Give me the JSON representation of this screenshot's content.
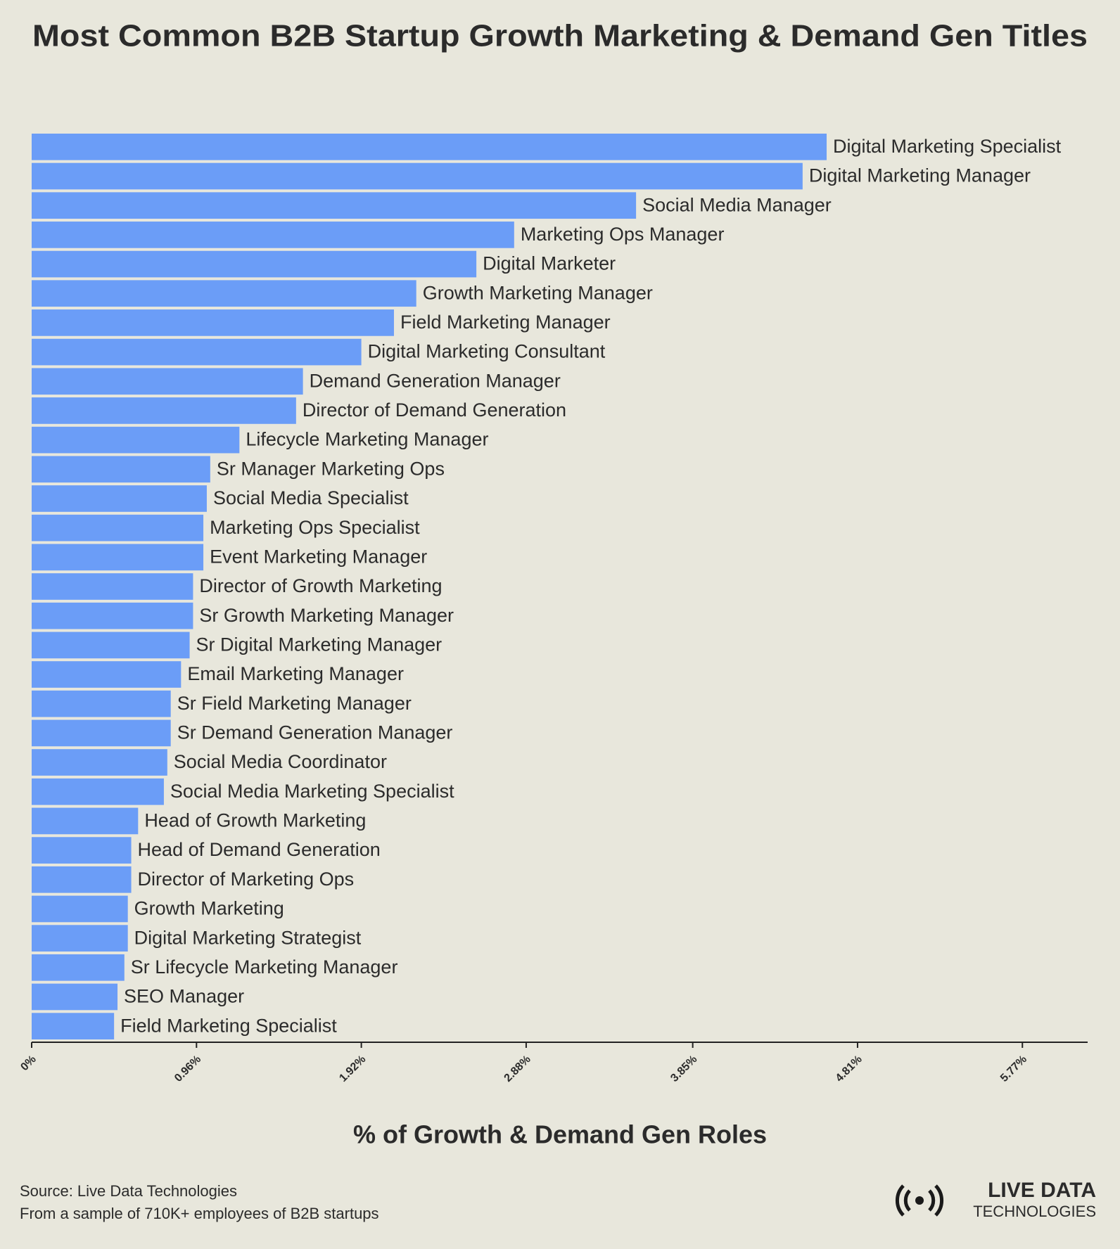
{
  "chart_data": {
    "type": "hbar",
    "title": "Most Common B2B Startup Growth Marketing & Demand Gen Titles",
    "x_label": "% of Growth & Demand Gen Roles",
    "source": "Source: Live Data Technologies",
    "note": "From a sample of 710K+ employees of B2B startups",
    "logo": {
      "line1": "LIVE DATA",
      "line2": "TECHNOLOGIES"
    },
    "color": "#6b9df7",
    "categories": [
      "Digital Marketing Specialist",
      "Digital Marketing Manager",
      "Social Media Manager",
      "Marketing Ops Manager",
      "Digital Marketer",
      "Growth Marketing Manager",
      "Field Marketing Manager",
      "Digital Marketing Consultant",
      "Demand Generation Manager",
      "Director of Demand Generation",
      "Lifecycle Marketing Manager",
      "Sr Manager Marketing Ops",
      "Social Media Specialist",
      "Marketing Ops Specialist",
      "Event Marketing Manager",
      "Director of Growth Marketing",
      "Sr Growth Marketing Manager",
      "Sr Digital Marketing Manager",
      "Email Marketing Manager",
      "Sr Field Marketing Manager",
      "Sr Demand Generation Manager",
      "Social Media Coordinator",
      "Social Media Marketing Specialist",
      "Head of Growth Marketing",
      "Head of Demand Generation",
      "Director of Marketing Ops",
      "Growth Marketing",
      "Digital Marketing Strategist",
      "Sr Lifecycle Marketing Manager",
      "SEO Manager",
      "Field Marketing Specialist"
    ],
    "values": [
      4.63,
      4.49,
      3.52,
      2.81,
      2.59,
      2.24,
      2.11,
      1.92,
      1.58,
      1.54,
      1.21,
      1.04,
      1.02,
      1.0,
      1.0,
      0.94,
      0.94,
      0.92,
      0.87,
      0.81,
      0.81,
      0.79,
      0.77,
      0.62,
      0.58,
      0.58,
      0.56,
      0.56,
      0.54,
      0.5,
      0.48
    ],
    "xlim": [
      0,
      6.15
    ],
    "xticks": [
      {
        "value": 0,
        "label": "0%"
      },
      {
        "value": 0.96,
        "label": "0.96%"
      },
      {
        "value": 1.92,
        "label": "1.92%"
      },
      {
        "value": 2.88,
        "label": "2.88%"
      },
      {
        "value": 3.85,
        "label": "3.85%"
      },
      {
        "value": 4.81,
        "label": "4.81%"
      },
      {
        "value": 5.77,
        "label": "5.77%"
      }
    ]
  }
}
